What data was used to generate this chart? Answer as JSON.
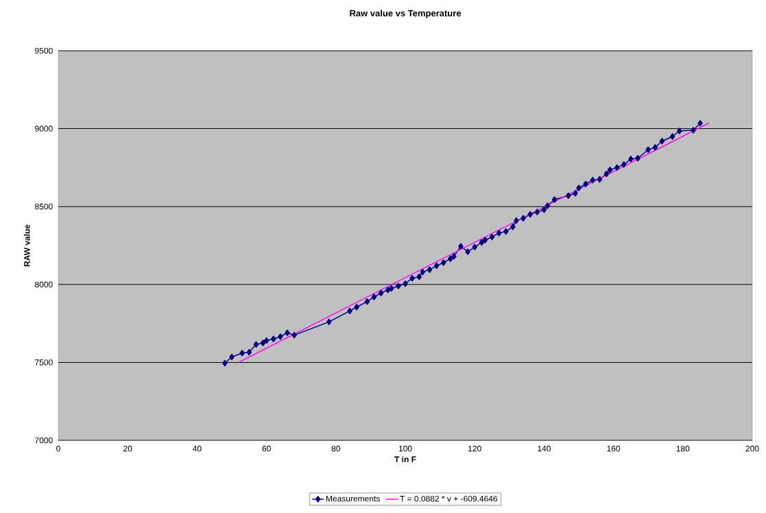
{
  "chart_data": {
    "type": "line",
    "title": "Raw value vs Temperature",
    "xlabel": "T in F",
    "ylabel": "RAW value",
    "xlim": [
      0,
      200
    ],
    "xticks": [
      0,
      20,
      40,
      60,
      80,
      100,
      120,
      140,
      160,
      180,
      200
    ],
    "ylim": [
      7000,
      9500
    ],
    "yticks": [
      7000,
      7500,
      8000,
      8500,
      9000,
      9500
    ],
    "grid": "y",
    "legend": "bottom",
    "series": [
      {
        "name": "Measurements",
        "color": "#000080",
        "marker": "diamond",
        "x": [
          48,
          50,
          53,
          55,
          57,
          59,
          60,
          62,
          64,
          66,
          68,
          78,
          84,
          86,
          89,
          91,
          93,
          95,
          96,
          98,
          100,
          102,
          104,
          105,
          107,
          109,
          111,
          113,
          114,
          116,
          118,
          120,
          122,
          123,
          125,
          127,
          129,
          131,
          132,
          134,
          136,
          138,
          140,
          141,
          143,
          147,
          149,
          150,
          152,
          154,
          156,
          158,
          159,
          161,
          163,
          165,
          167,
          170,
          172,
          174,
          177,
          179,
          183,
          185
        ],
        "values": [
          7495,
          7535,
          7560,
          7565,
          7615,
          7625,
          7640,
          7650,
          7665,
          7690,
          7675,
          7760,
          7830,
          7855,
          7890,
          7920,
          7945,
          7965,
          7975,
          7990,
          8005,
          8040,
          8050,
          8080,
          8095,
          8120,
          8140,
          8165,
          8180,
          8245,
          8210,
          8240,
          8270,
          8285,
          8305,
          8330,
          8340,
          8370,
          8410,
          8425,
          8450,
          8465,
          8480,
          8505,
          8545,
          8570,
          8585,
          8620,
          8645,
          8670,
          8675,
          8710,
          8735,
          8750,
          8770,
          8805,
          8810,
          8865,
          8880,
          8920,
          8950,
          8985,
          8990,
          9035
        ]
      },
      {
        "name": "T = 0.0882 * v + -609.4646",
        "color": "#ff00ff",
        "marker": "none",
        "x": [
          52,
          187.5
        ],
        "values": [
          7500,
          9036
        ]
      }
    ]
  }
}
